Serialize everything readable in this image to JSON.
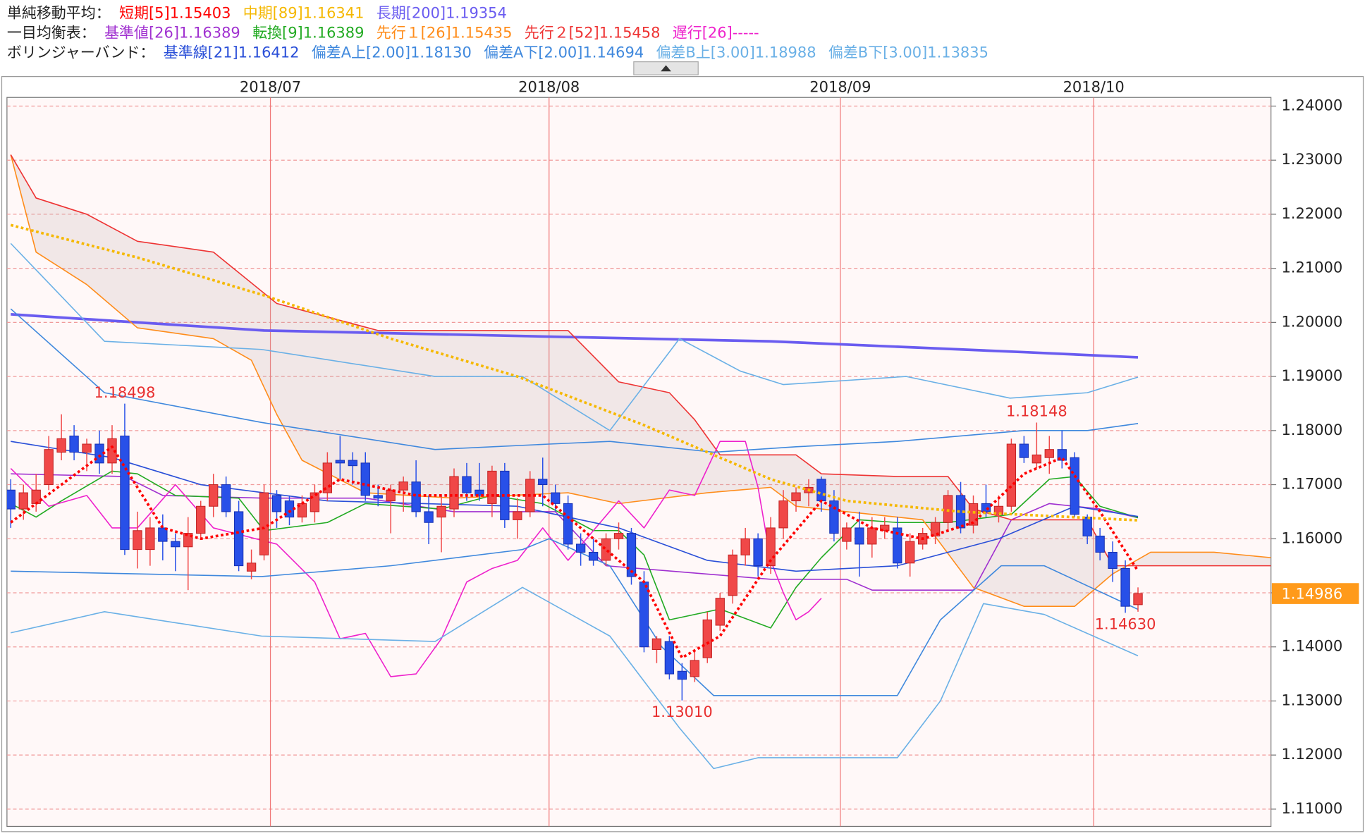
{
  "chart_data": {
    "type": "candlestick",
    "indicator_groups": [
      {
        "label": "単純移動平均：",
        "series": [
          {
            "name": "短期[5]1.15403",
            "color": "#ff0000",
            "style": "dotted",
            "x": [
              0,
              4,
              8,
              12,
              15,
              20,
              26,
              32,
              38,
              42,
              46,
              50,
              53,
              56,
              60,
              64,
              68,
              72,
              76,
              80,
              83,
              86,
              89
            ],
            "values": [
              1.163,
              1.17,
              1.177,
              1.162,
              1.16,
              1.162,
              1.171,
              1.168,
              1.168,
              1.168,
              1.16,
              1.152,
              1.138,
              1.142,
              1.156,
              1.167,
              1.162,
              1.16,
              1.163,
              1.172,
              1.175,
              1.165,
              1.15403
            ]
          },
          {
            "name": "中期[89]1.16341",
            "color": "#f5b800",
            "style": "dotted",
            "x": [
              0,
              10,
              20,
              30,
              40,
              50,
              56,
              60,
              66,
              75,
              89
            ],
            "values": [
              1.218,
              1.212,
              1.205,
              1.197,
              1.19,
              1.181,
              1.175,
              1.171,
              1.167,
              1.165,
              1.16341
            ]
          },
          {
            "name": "長期[200]1.19354",
            "color": "#6a5cf0",
            "style": "bold",
            "x": [
              0,
              20,
              40,
              60,
              70,
              80,
              89
            ],
            "values": [
              1.2015,
              1.1985,
              1.1975,
              1.1965,
              1.1955,
              1.1945,
              1.19354
            ]
          }
        ]
      },
      {
        "label": "一目均衡表：",
        "series": [
          {
            "name": "基準値[26]1.16389",
            "color": "#a030d0",
            "x": [
              0,
              9,
              12,
              20,
              28,
              35,
              43,
              47,
              60,
              66,
              68,
              76,
              79,
              82,
              86,
              89
            ],
            "values": [
              1.172,
              1.1715,
              1.168,
              1.1675,
              1.1675,
              1.165,
              1.165,
              1.155,
              1.1525,
              1.1525,
              1.1505,
              1.1505,
              1.1635,
              1.1665,
              1.1655,
              1.16389
            ]
          },
          {
            "name": "転換[9]1.16389",
            "color": "#22aa22",
            "x": [
              0,
              2,
              4,
              8,
              10,
              13,
              18,
              20,
              25,
              28,
              34,
              38,
              42,
              46,
              48,
              50,
              52,
              56,
              60,
              62,
              64,
              67,
              70,
              74,
              79,
              82,
              84,
              86,
              89
            ],
            "values": [
              1.1665,
              1.164,
              1.167,
              1.1725,
              1.172,
              1.168,
              1.1675,
              1.1615,
              1.163,
              1.1665,
              1.1655,
              1.168,
              1.1665,
              1.1615,
              1.1615,
              1.157,
              1.145,
              1.147,
              1.1435,
              1.151,
              1.1565,
              1.1635,
              1.163,
              1.163,
              1.1645,
              1.171,
              1.1715,
              1.166,
              1.16389
            ]
          },
          {
            "name": "先行１[26]1.15435",
            "color": "#ff8c1a",
            "cloud": true,
            "x": [
              0,
              2,
              6,
              10,
              16,
              19,
              21,
              23,
              28,
              35,
              44,
              48,
              55,
              60,
              62,
              66,
              72,
              76,
              80,
              84,
              87,
              90,
              95,
              99.5
            ],
            "values": [
              1.231,
              1.213,
              1.207,
              1.199,
              1.197,
              1.193,
              1.183,
              1.1745,
              1.1685,
              1.1675,
              1.1685,
              1.1665,
              1.1685,
              1.1695,
              1.166,
              1.165,
              1.1635,
              1.151,
              1.1475,
              1.1475,
              1.1535,
              1.1575,
              1.1575,
              1.1565
            ]
          },
          {
            "name": "先行２[52]1.15458",
            "color": "#ee3333",
            "cloud": true,
            "x": [
              0,
              2,
              6,
              10,
              16,
              21,
              29,
              35,
              44,
              48,
              52,
              54,
              56,
              62,
              64,
              70,
              74,
              76,
              79,
              85,
              87,
              99.5
            ],
            "values": [
              1.231,
              1.223,
              1.22,
              1.215,
              1.213,
              1.2035,
              1.1985,
              1.1985,
              1.1985,
              1.189,
              1.187,
              1.182,
              1.1755,
              1.1755,
              1.172,
              1.1715,
              1.1715,
              1.1655,
              1.1635,
              1.1635,
              1.155,
              1.155
            ]
          },
          {
            "name": "遅行[26]-----",
            "color": "#ee22cc",
            "x": [
              0,
              3,
              6,
              8,
              10,
              13,
              16,
              21,
              24,
              26,
              28,
              30,
              32,
              34,
              36,
              38,
              40,
              42,
              44,
              48,
              50,
              52,
              54,
              56,
              58,
              59,
              60,
              61,
              62,
              63,
              64
            ],
            "values": [
              1.173,
              1.166,
              1.168,
              1.162,
              1.162,
              1.17,
              1.162,
              1.159,
              1.152,
              1.1415,
              1.1425,
              1.1345,
              1.135,
              1.1415,
              1.152,
              1.1545,
              1.156,
              1.162,
              1.156,
              1.167,
              1.162,
              1.169,
              1.168,
              1.178,
              1.178,
              1.1695,
              1.156,
              1.15,
              1.145,
              1.1465,
              1.149
            ]
          }
        ]
      },
      {
        "label": "ボリンジャーバンド：",
        "series": [
          {
            "name": "基準線[21]1.16412",
            "color": "#2a4fd8",
            "x": [
              0,
              8,
              15,
              25,
              40,
              48,
              55,
              62,
              70,
              78,
              84,
              89
            ],
            "values": [
              1.178,
              1.175,
              1.17,
              1.167,
              1.166,
              1.162,
              1.156,
              1.154,
              1.155,
              1.16,
              1.166,
              1.16412
            ]
          },
          {
            "name": "偏差A上[2.00]1.18130",
            "color": "#3f88dd",
            "x": [
              0,
              7.4,
              19.8,
              33.5,
              42.5,
              47.3,
              55.5,
              62,
              70,
              80,
              85,
              89
            ],
            "values": [
              1.2025,
              1.187,
              1.1815,
              1.1765,
              1.1775,
              1.178,
              1.176,
              1.177,
              1.178,
              1.18,
              1.18,
              1.1813
            ]
          },
          {
            "name": "偏差A下[2.00]1.14694",
            "color": "#3f88dd",
            "x": [
              0,
              19.8,
              30,
              40.4,
              42.5,
              47.3,
              51.4,
              55.5,
              70,
              73.4,
              78.2,
              81.6,
              89
            ],
            "values": [
              1.154,
              1.153,
              1.155,
              1.158,
              1.16,
              1.155,
              1.14,
              1.131,
              1.131,
              1.145,
              1.155,
              1.155,
              1.14694
            ]
          },
          {
            "name": "偏差B上[3.00]1.18988",
            "color": "#6ab0e6",
            "x": [
              0,
              7.4,
              19.8,
              33.5,
              40.4,
              47.3,
              52.8,
              57.6,
              61,
              70.7,
              78.9,
              85,
              89
            ],
            "values": [
              1.2146,
              1.1965,
              1.195,
              1.19,
              1.19,
              1.18,
              1.197,
              1.191,
              1.1885,
              1.19,
              1.186,
              1.187,
              1.18988
            ]
          },
          {
            "name": "偏差B下[3.00]1.13835",
            "color": "#6ab0e6",
            "x": [
              0,
              7.4,
              19.8,
              33.5,
              40.4,
              47.3,
              52.8,
              55.5,
              59,
              70,
              73.4,
              76.8,
              81.6,
              89
            ],
            "values": [
              1.1426,
              1.1465,
              1.142,
              1.141,
              1.151,
              1.142,
              1.125,
              1.1175,
              1.1195,
              1.1195,
              1.13,
              1.148,
              1.146,
              1.13835
            ]
          }
        ]
      }
    ],
    "candles": {
      "up_color": "#f04848",
      "down_color": "#2850e8",
      "open": [
        1.169,
        1.1655,
        1.1665,
        1.17,
        1.176,
        1.179,
        1.176,
        1.1775,
        1.174,
        1.179,
        1.158,
        1.158,
        1.162,
        1.1595,
        1.1585,
        1.161,
        1.166,
        1.17,
        1.165,
        1.154,
        1.157,
        1.168,
        1.167,
        1.164,
        1.165,
        1.1685,
        1.1745,
        1.1745,
        1.174,
        1.168,
        1.167,
        1.169,
        1.1705,
        1.165,
        1.164,
        1.1655,
        1.1715,
        1.169,
        1.1665,
        1.1725,
        1.1635,
        1.165,
        1.171,
        1.1685,
        1.1665,
        1.159,
        1.1575,
        1.156,
        1.16,
        1.161,
        1.152,
        1.1395,
        1.141,
        1.1355,
        1.1345,
        1.138,
        1.144,
        1.1495,
        1.157,
        1.16,
        1.155,
        1.162,
        1.167,
        1.1685,
        1.171,
        1.167,
        1.1595,
        1.162,
        1.159,
        1.1615,
        1.162,
        1.1555,
        1.159,
        1.1605,
        1.163,
        1.168,
        1.1625,
        1.1665,
        1.1645,
        1.166,
        1.1775,
        1.174,
        1.175,
        1.1765,
        1.175,
        1.164,
        1.1605,
        1.1575,
        1.1545,
        1.1478
      ],
      "high": [
        1.171,
        1.17,
        1.172,
        1.179,
        1.183,
        1.181,
        1.1785,
        1.18,
        1.181,
        1.18498,
        1.165,
        1.164,
        1.1645,
        1.161,
        1.164,
        1.167,
        1.172,
        1.1715,
        1.167,
        1.158,
        1.17,
        1.169,
        1.168,
        1.168,
        1.17,
        1.176,
        1.179,
        1.176,
        1.176,
        1.17,
        1.17,
        1.1715,
        1.1745,
        1.168,
        1.168,
        1.173,
        1.174,
        1.174,
        1.1735,
        1.174,
        1.1675,
        1.1725,
        1.175,
        1.17,
        1.168,
        1.161,
        1.16,
        1.161,
        1.163,
        1.162,
        1.154,
        1.142,
        1.142,
        1.137,
        1.1395,
        1.1465,
        1.15,
        1.158,
        1.162,
        1.161,
        1.164,
        1.169,
        1.1695,
        1.171,
        1.1715,
        1.169,
        1.163,
        1.165,
        1.164,
        1.164,
        1.164,
        1.161,
        1.162,
        1.164,
        1.169,
        1.1705,
        1.168,
        1.17,
        1.168,
        1.1785,
        1.179,
        1.18148,
        1.179,
        1.18,
        1.176,
        1.1645,
        1.162,
        1.1595,
        1.156,
        1.151
      ],
      "low": [
        1.162,
        1.1635,
        1.165,
        1.169,
        1.1745,
        1.1745,
        1.1725,
        1.172,
        1.172,
        1.157,
        1.1545,
        1.155,
        1.156,
        1.154,
        1.1505,
        1.16,
        1.164,
        1.164,
        1.154,
        1.1525,
        1.156,
        1.162,
        1.1625,
        1.163,
        1.163,
        1.167,
        1.171,
        1.17,
        1.167,
        1.166,
        1.161,
        1.165,
        1.164,
        1.159,
        1.1575,
        1.164,
        1.167,
        1.167,
        1.164,
        1.162,
        1.16,
        1.164,
        1.166,
        1.165,
        1.158,
        1.155,
        1.155,
        1.155,
        1.158,
        1.1515,
        1.139,
        1.137,
        1.134,
        1.1301,
        1.1335,
        1.137,
        1.143,
        1.148,
        1.155,
        1.153,
        1.1535,
        1.16,
        1.165,
        1.166,
        1.165,
        1.1595,
        1.158,
        1.153,
        1.1565,
        1.16,
        1.1545,
        1.153,
        1.158,
        1.159,
        1.1615,
        1.161,
        1.161,
        1.164,
        1.163,
        1.165,
        1.174,
        1.173,
        1.172,
        1.173,
        1.164,
        1.159,
        1.156,
        1.152,
        1.1463,
        1.1465
      ],
      "close": [
        1.1655,
        1.1685,
        1.169,
        1.1765,
        1.1785,
        1.176,
        1.1775,
        1.174,
        1.1785,
        1.158,
        1.1615,
        1.162,
        1.1595,
        1.1585,
        1.161,
        1.166,
        1.17,
        1.165,
        1.155,
        1.1555,
        1.1685,
        1.165,
        1.164,
        1.1665,
        1.1685,
        1.174,
        1.174,
        1.1735,
        1.168,
        1.1675,
        1.169,
        1.1705,
        1.165,
        1.163,
        1.166,
        1.1715,
        1.1685,
        1.168,
        1.1725,
        1.1635,
        1.165,
        1.171,
        1.17,
        1.1665,
        1.159,
        1.1575,
        1.156,
        1.16,
        1.161,
        1.153,
        1.14,
        1.1415,
        1.135,
        1.134,
        1.1375,
        1.145,
        1.149,
        1.157,
        1.16,
        1.155,
        1.162,
        1.167,
        1.1685,
        1.1695,
        1.167,
        1.161,
        1.162,
        1.159,
        1.162,
        1.1625,
        1.1555,
        1.1595,
        1.161,
        1.163,
        1.168,
        1.162,
        1.1665,
        1.165,
        1.166,
        1.1775,
        1.175,
        1.1755,
        1.1765,
        1.1745,
        1.1645,
        1.1605,
        1.1575,
        1.1545,
        1.1475,
        1.14986
      ]
    },
    "annotations": [
      {
        "x": 9,
        "value": 1.18498,
        "label": "1.18498"
      },
      {
        "x": 53,
        "value": 1.1301,
        "label": "1.13010"
      },
      {
        "x": 81,
        "value": 1.18148,
        "label": "1.18148"
      },
      {
        "x": 88,
        "value": 1.1463,
        "label": "1.14630"
      }
    ],
    "current_price": {
      "value": 1.14986,
      "label": "1.14986"
    },
    "xlim": [
      -0.3,
      99.5
    ],
    "xticks": [
      {
        "value": 20.5,
        "label": "2018/07"
      },
      {
        "value": 42.5,
        "label": "2018/08"
      },
      {
        "value": 65.5,
        "label": "2018/09"
      },
      {
        "value": 85.5,
        "label": "2018/10"
      }
    ],
    "ylim": [
      1.1068,
      1.2416
    ],
    "yticks": [
      {
        "value": 1.11,
        "label": "1.11000"
      },
      {
        "value": 1.12,
        "label": "1.12000"
      },
      {
        "value": 1.13,
        "label": "1.13000"
      },
      {
        "value": 1.14,
        "label": "1.14000"
      },
      {
        "value": 1.15,
        "label": "1.15000"
      },
      {
        "value": 1.16,
        "label": "1.16000"
      },
      {
        "value": 1.17,
        "label": "1.17000"
      },
      {
        "value": 1.18,
        "label": "1.18000"
      },
      {
        "value": 1.19,
        "label": "1.19000"
      },
      {
        "value": 1.2,
        "label": "1.20000"
      },
      {
        "value": 1.21,
        "label": "1.21000"
      },
      {
        "value": 1.22,
        "label": "1.22000"
      },
      {
        "value": 1.23,
        "label": "1.23000"
      },
      {
        "value": 1.24,
        "label": "1.24000"
      }
    ],
    "grid": true
  }
}
